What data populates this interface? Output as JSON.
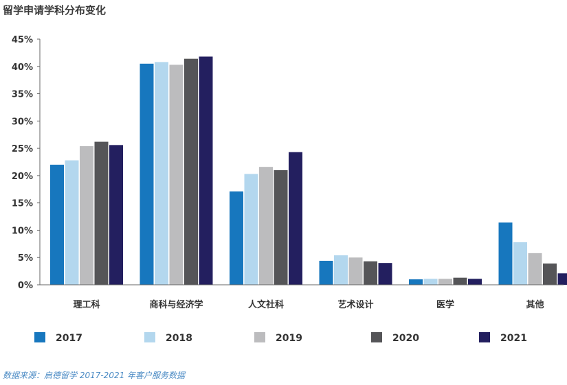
{
  "title": "留学申请学科分布变化",
  "source": "数据来源：启德留学 2017-2021 年客户服务数据",
  "colors": {
    "2017": "#1777be",
    "2018": "#b3d7ee",
    "2019": "#bcbcbe",
    "2020": "#555558",
    "2021": "#231f5f"
  },
  "chart_data": {
    "type": "bar",
    "title": "留学申请学科分布变化",
    "xlabel": "",
    "ylabel": "",
    "categories": [
      "理工科",
      "商科与经济学",
      "人文社科",
      "艺术设计",
      "医学",
      "其他"
    ],
    "yticks": [
      "0%",
      "5%",
      "10%",
      "15%",
      "20%",
      "25%",
      "30%",
      "35%",
      "40%",
      "45%"
    ],
    "ylim": [
      0,
      45
    ],
    "legend_position": "bottom",
    "grid": false,
    "series": [
      {
        "name": "2017",
        "values": [
          22.0,
          40.5,
          17.1,
          4.4,
          1.0,
          11.4
        ]
      },
      {
        "name": "2018",
        "values": [
          22.8,
          40.8,
          20.3,
          5.4,
          1.1,
          7.8
        ]
      },
      {
        "name": "2019",
        "values": [
          25.4,
          40.3,
          21.6,
          5.0,
          1.1,
          5.8
        ]
      },
      {
        "name": "2020",
        "values": [
          26.2,
          41.4,
          21.0,
          4.3,
          1.3,
          3.9
        ]
      },
      {
        "name": "2021",
        "values": [
          25.6,
          41.8,
          24.3,
          4.0,
          1.1,
          2.1
        ]
      }
    ]
  }
}
